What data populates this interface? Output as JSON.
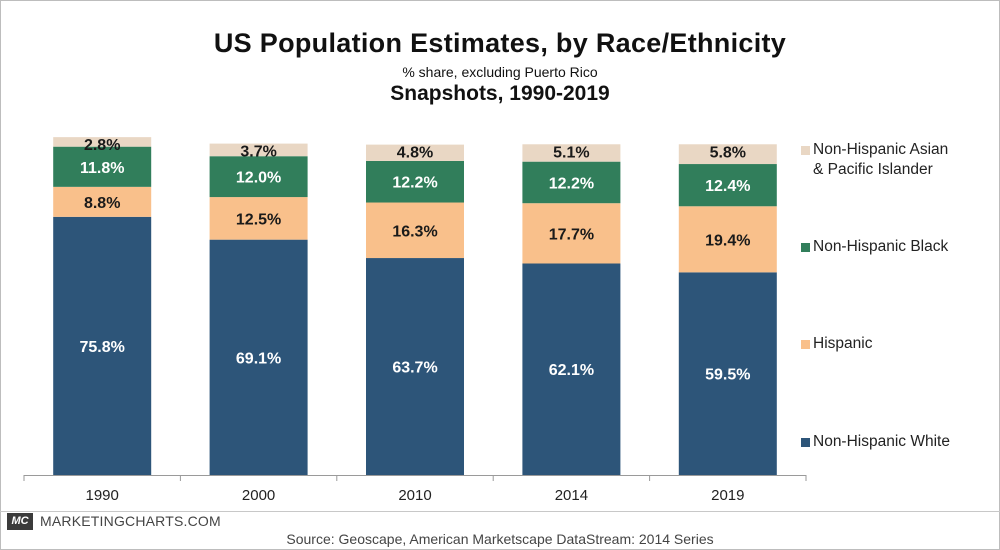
{
  "header": {
    "title": "US Population Estimates, by Race/Ethnicity",
    "subtitle": "% share, excluding Puerto Rico",
    "subtitle2": "Snapshots, 1990-2019"
  },
  "footer": {
    "logo": "MC",
    "brand": "MARKETINGCHARTS.COM",
    "source": "Source: Geoscape, American Marketscape DataStream: 2014 Series"
  },
  "chart_data": {
    "type": "bar",
    "stacked": true,
    "title": "US Population Estimates, by Race/Ethnicity",
    "subtitle": "% share, excluding Puerto Rico",
    "xlabel": "",
    "ylabel": "",
    "ylim": [
      0,
      100
    ],
    "grid": false,
    "legend_position": "right",
    "categories": [
      "1990",
      "2000",
      "2010",
      "2014",
      "2019"
    ],
    "series": [
      {
        "name": "Non-Hispanic White",
        "color": "#2d5579",
        "values": [
          75.8,
          69.1,
          63.7,
          62.1,
          59.5
        ],
        "labels": [
          "75.8%",
          "69.1%",
          "63.7%",
          "62.1%",
          "59.5%"
        ]
      },
      {
        "name": "Hispanic",
        "color": "#f9c08b",
        "values": [
          8.8,
          12.5,
          16.3,
          17.7,
          19.4
        ],
        "labels": [
          "8.8%",
          "12.5%",
          "16.3%",
          "17.7%",
          "19.4%"
        ]
      },
      {
        "name": "Non-Hispanic Black",
        "color": "#317e5b",
        "values": [
          11.8,
          12.0,
          12.2,
          12.2,
          12.4
        ],
        "labels": [
          "11.8%",
          "12.0%",
          "12.2%",
          "12.2%",
          "12.4%"
        ]
      },
      {
        "name": "Non-Hispanic Asian & Pacific Islander",
        "color": "#e9d7c4",
        "values": [
          2.8,
          3.7,
          4.8,
          5.1,
          5.8
        ],
        "labels": [
          "2.8%",
          "3.7%",
          "4.8%",
          "5.1%",
          "5.8%"
        ]
      }
    ]
  },
  "legend": {
    "items": [
      {
        "lines": [
          "Non-Hispanic Asian",
          "& Pacific Islander"
        ],
        "color": "#e9d7c4"
      },
      {
        "lines": [
          "Non-Hispanic Black"
        ],
        "color": "#317e5b"
      },
      {
        "lines": [
          "Hispanic"
        ],
        "color": "#f9c08b"
      },
      {
        "lines": [
          "Non-Hispanic White"
        ],
        "color": "#2d5579"
      }
    ]
  }
}
